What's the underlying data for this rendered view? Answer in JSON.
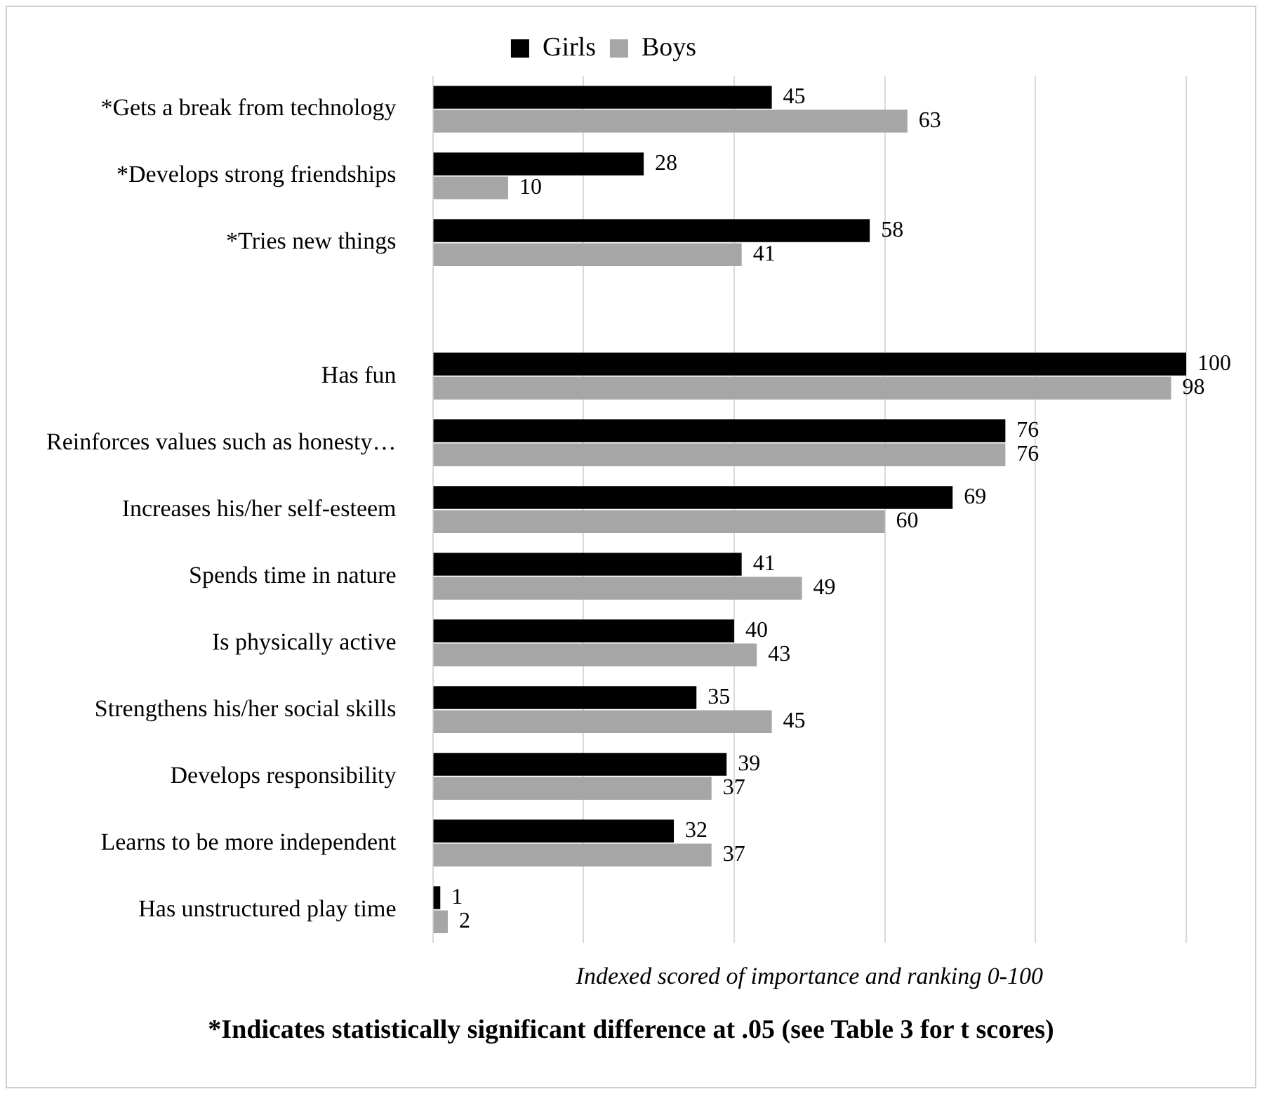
{
  "chart_data": {
    "type": "bar",
    "orientation": "horizontal",
    "xlabel": "Indexed scored of importance and ranking 0-100",
    "annotations": [
      "*Indicates statistically significant difference at .05 (see Table 3 for t scores)"
    ],
    "categories": [
      "*Gets a break from technology",
      "*Develops strong friendships",
      "*Tries new things",
      null,
      "Has fun",
      "Reinforces values such as honesty…",
      "Increases his/her self-esteem",
      "Spends time in nature",
      "Is physically active",
      "Strengthens his/her social skills",
      "Develops responsibility",
      "Learns to be more independent",
      "Has unstructured play time"
    ],
    "series": [
      {
        "name": "Girls",
        "color": "#000000",
        "values": [
          45,
          28,
          58,
          null,
          100,
          76,
          69,
          41,
          40,
          35,
          39,
          32,
          1
        ]
      },
      {
        "name": "Boys",
        "color": "#a6a6a6",
        "values": [
          63,
          10,
          41,
          null,
          98,
          76,
          60,
          49,
          43,
          45,
          37,
          37,
          2
        ]
      }
    ],
    "xlim": [
      0,
      100
    ],
    "xticks": [
      {
        "value": 0,
        "label": null
      },
      {
        "value": 20,
        "label": null
      },
      {
        "value": 40,
        "label": null
      },
      {
        "value": 60,
        "label": null
      },
      {
        "value": 80,
        "label": null
      },
      {
        "value": 100,
        "label": null
      }
    ],
    "tick_labels": "y",
    "grid": "x",
    "legend": "top",
    "data_labels": true
  }
}
